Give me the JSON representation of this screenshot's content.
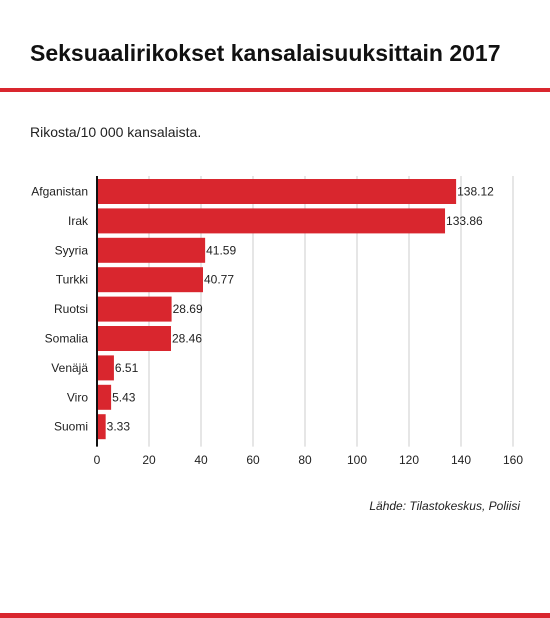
{
  "header": {
    "title": "Seksuaalirikokset kansalaisuuksittain 2017",
    "subtitle": "Rikosta/10 000 kansalaista."
  },
  "footer": {
    "source": "Lähde: Tilastokeskus, Poliisi"
  },
  "colors": {
    "accent": "#d9262e",
    "bar": "#d9262e",
    "grid": "#cccccc",
    "text": "#222222"
  },
  "chart_data": {
    "type": "bar",
    "orientation": "horizontal",
    "title": "Seksuaalirikokset kansalaisuuksittain 2017",
    "subtitle": "Rikosta/10 000 kansalaista.",
    "categories": [
      "Afganistan",
      "Irak",
      "Syyria",
      "Turkki",
      "Ruotsi",
      "Somalia",
      "Venäjä",
      "Viro",
      "Suomi"
    ],
    "values": [
      138.12,
      133.86,
      41.59,
      40.77,
      28.69,
      28.46,
      6.51,
      5.43,
      3.33
    ],
    "value_labels": [
      "138.12",
      "133.86",
      "41.59",
      "40.77",
      "28.69",
      "28.46",
      "6.51",
      "5.43",
      "3.33"
    ],
    "xlim": [
      0,
      160
    ],
    "xticks": [
      "0",
      "20",
      "40",
      "60",
      "80",
      "100",
      "120",
      "140",
      "160"
    ],
    "xtick_values": [
      0,
      20,
      40,
      60,
      80,
      100,
      120,
      140,
      160
    ],
    "grid": true,
    "legend": "none"
  }
}
